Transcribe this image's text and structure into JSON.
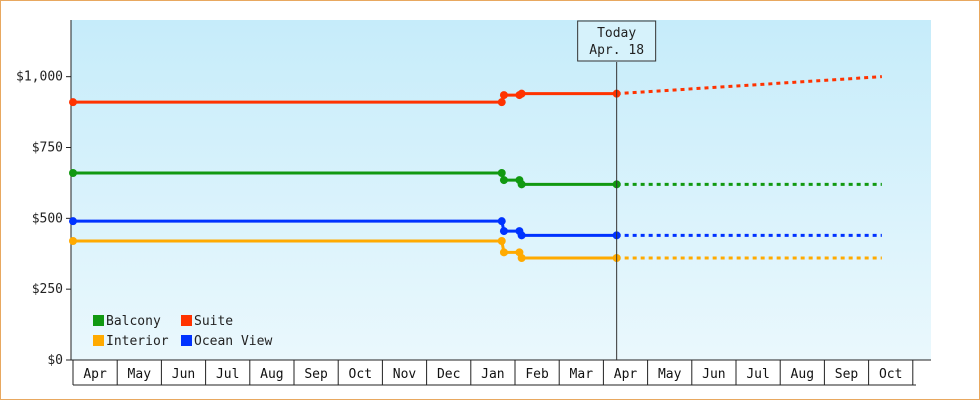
{
  "chart_data": {
    "type": "line",
    "title": "",
    "xlabel": "",
    "ylabel": "",
    "ylim": [
      0,
      1200
    ],
    "yticks": [
      {
        "value": 0,
        "label": "$0"
      },
      {
        "value": 250,
        "label": "$250"
      },
      {
        "value": 500,
        "label": "$500"
      },
      {
        "value": 750,
        "label": "$750"
      },
      {
        "value": 1000,
        "label": "$1,000"
      }
    ],
    "month_ticks": [
      "Apr",
      "May",
      "Jun",
      "Jul",
      "Aug",
      "Sep",
      "Oct",
      "Nov",
      "Dec",
      "Jan",
      "Feb",
      "Mar",
      "Apr",
      "May",
      "Jun",
      "Jul",
      "Aug",
      "Sep",
      "Oct"
    ],
    "today": {
      "label": "Today",
      "date": "Apr. 18",
      "x": 12.3
    },
    "legend_position": "bottom-left",
    "grid": false,
    "series": [
      {
        "name": "Suite",
        "color": "#ff3300",
        "points": [
          [
            0,
            910
          ],
          [
            9.7,
            910
          ],
          [
            9.75,
            935
          ],
          [
            10.1,
            935
          ],
          [
            10.15,
            940
          ],
          [
            12.3,
            940
          ]
        ],
        "forecast": [
          [
            12.3,
            940
          ],
          [
            13.3,
            950
          ],
          [
            14.3,
            960
          ],
          [
            15.3,
            970
          ],
          [
            16.3,
            980
          ],
          [
            17.3,
            990
          ],
          [
            18.3,
            1000
          ]
        ]
      },
      {
        "name": "Balcony",
        "color": "#119911",
        "points": [
          [
            0,
            660
          ],
          [
            9.7,
            660
          ],
          [
            9.75,
            635
          ],
          [
            10.1,
            635
          ],
          [
            10.15,
            620
          ],
          [
            12.3,
            620
          ]
        ],
        "forecast": [
          [
            12.3,
            620
          ],
          [
            18.3,
            620
          ]
        ]
      },
      {
        "name": "Ocean View",
        "color": "#0033ff",
        "points": [
          [
            0,
            490
          ],
          [
            9.7,
            490
          ],
          [
            9.75,
            455
          ],
          [
            10.1,
            455
          ],
          [
            10.15,
            440
          ],
          [
            12.3,
            440
          ]
        ],
        "forecast": [
          [
            12.3,
            440
          ],
          [
            18.3,
            440
          ]
        ]
      },
      {
        "name": "Interior",
        "color": "#ffaa00",
        "points": [
          [
            0,
            420
          ],
          [
            9.7,
            420
          ],
          [
            9.75,
            380
          ],
          [
            10.1,
            380
          ],
          [
            10.15,
            360
          ],
          [
            12.3,
            360
          ]
        ],
        "forecast": [
          [
            12.3,
            360
          ],
          [
            18.3,
            360
          ]
        ]
      }
    ],
    "legend": [
      {
        "name": "Balcony",
        "color": "#119911"
      },
      {
        "name": "Suite",
        "color": "#ff3300"
      },
      {
        "name": "Interior",
        "color": "#ffaa00"
      },
      {
        "name": "Ocean View",
        "color": "#0033ff"
      }
    ]
  }
}
